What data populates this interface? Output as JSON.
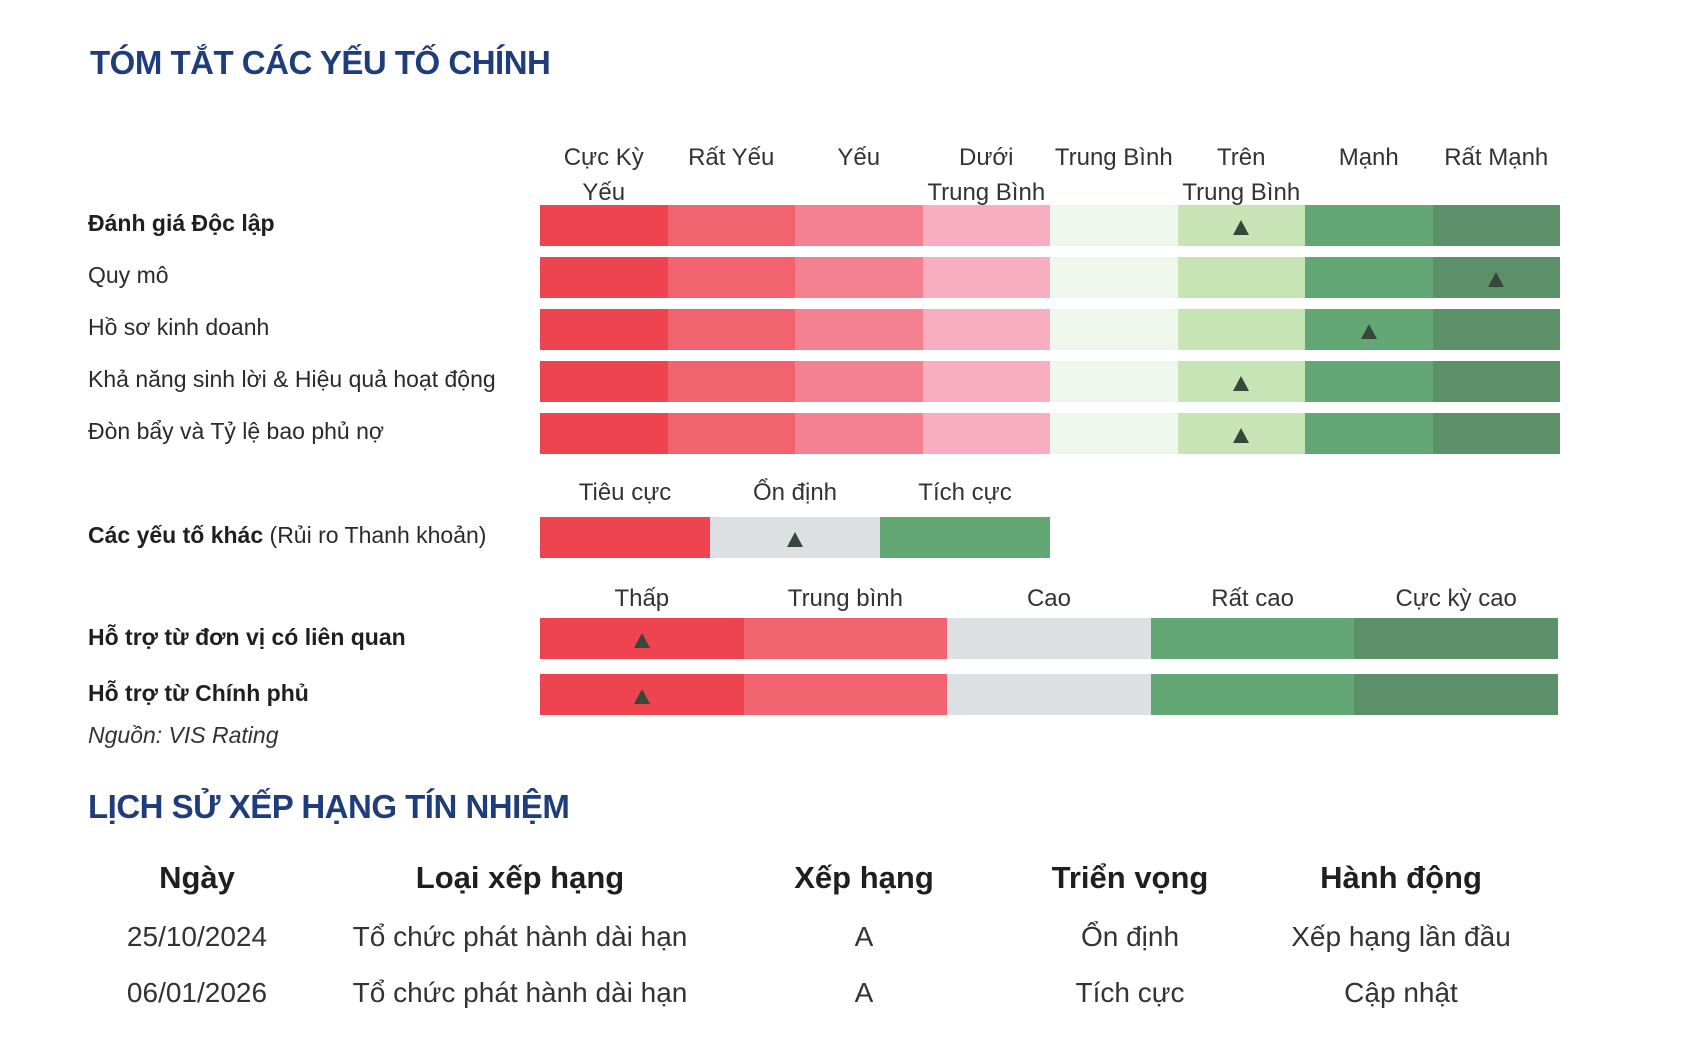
{
  "title": "TÓM TẮT CÁC YẾU TỐ CHÍNH",
  "scale7": {
    "headers": [
      [
        "Cực Kỳ",
        "Yếu"
      ],
      [
        "Rất Yếu"
      ],
      [
        "Yếu"
      ],
      [
        "Dưới",
        "Trung Bình"
      ],
      [
        "Trung Bình"
      ],
      [
        "Trên",
        "Trung Bình"
      ],
      [
        "Mạnh"
      ],
      [
        "Rất Mạnh"
      ]
    ],
    "colors": [
      "#ee444f",
      "#f1636f",
      "#f3818f",
      "#f7aec0",
      "#eff7ed",
      "#c7e4b4",
      "#62a774",
      "#5c9068"
    ],
    "rows": [
      {
        "label_bold": "Đánh giá Độc lập",
        "label": "",
        "marker": 5
      },
      {
        "label_bold": "",
        "label": "Quy mô",
        "marker": 7
      },
      {
        "label_bold": "",
        "label": "Hồ sơ kinh doanh",
        "marker": 6
      },
      {
        "label_bold": "",
        "label": "Khả năng sinh lời & Hiệu quả hoạt động",
        "marker": 5
      },
      {
        "label_bold": "",
        "label": "Đòn bẩy và Tỷ lệ bao phủ nợ",
        "marker": 5
      }
    ]
  },
  "scale3": {
    "headers": [
      "Tiêu cực",
      "Ổn định",
      "Tích cực"
    ],
    "colors": [
      "#ee444f",
      "#dde0e3",
      "#62a774"
    ],
    "row": {
      "label_bold": "Các yếu tố khác",
      "label": " (Rủi ro Thanh khoản)",
      "marker": 1
    }
  },
  "scale5": {
    "headers": [
      "Thấp",
      "Trung bình",
      "Cao",
      "Rất cao",
      "Cực kỳ cao"
    ],
    "colors": [
      "#ee444f",
      "#f1636f",
      "#dde0e3",
      "#62a774",
      "#5c9068"
    ],
    "rows": [
      {
        "label_bold": "Hỗ trợ từ đơn vị có liên quan",
        "label": "",
        "marker": 0
      },
      {
        "label_bold": "Hỗ trợ từ Chính phủ",
        "label": "",
        "marker": 0
      }
    ]
  },
  "source": "Nguồn: VIS Rating",
  "history_title": "LỊCH SỬ XẾP HẠNG TÍN NHIỆM",
  "history": {
    "columns": [
      "Ngày",
      "Loại xếp hạng",
      "Xếp hạng",
      "Triển vọng",
      "Hành động"
    ],
    "rows": [
      [
        "25/10/2024",
        "Tổ chức phát hành dài hạn",
        "A",
        "Ổn định",
        "Xếp hạng lần đầu"
      ],
      [
        "06/01/2026",
        "Tổ chức phát hành dài hạn",
        "A",
        "Tích cực",
        "Cập nhật"
      ]
    ]
  }
}
